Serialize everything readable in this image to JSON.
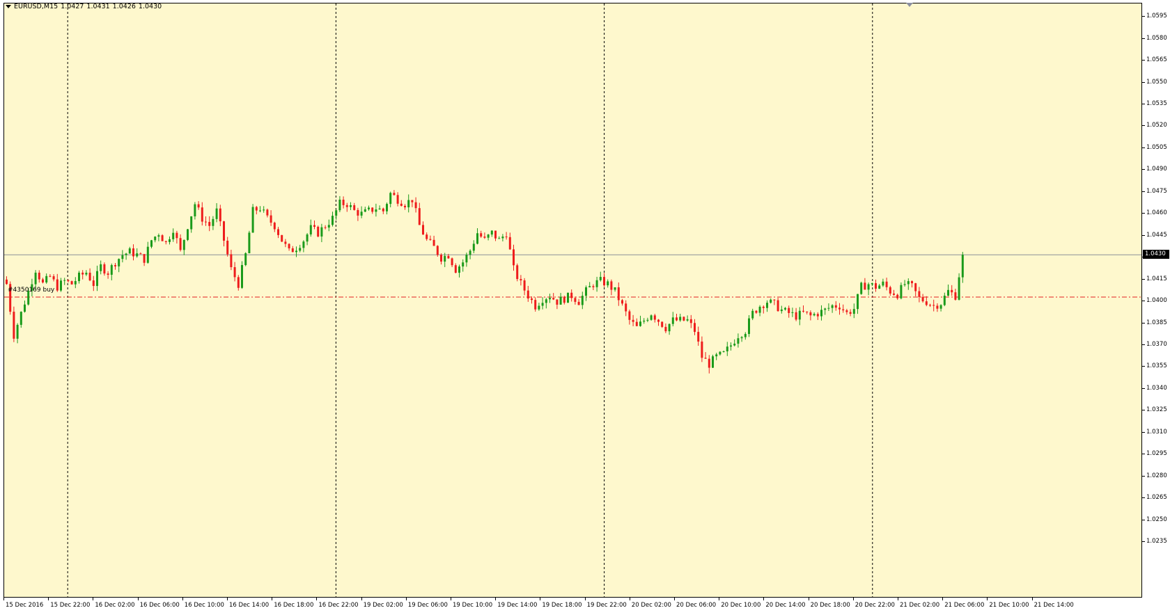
{
  "chart_window": {
    "symbol": "EURUSD,M15",
    "open": "1.0427",
    "high": "1.0431",
    "low": "1.0426",
    "close": "1.0430",
    "order_label": "#4350169 buy",
    "current_price": "1.0430"
  },
  "colors": {
    "background": "#fef8cd",
    "bull_candle": "#1a9a1a",
    "bear_candle": "#ee1c1c",
    "grid_separator": "#000000",
    "order_line": "#e31e1e",
    "bid_line": "#8a9098"
  },
  "chart_data": {
    "type": "candlestick",
    "timeframe": "M15",
    "ylim": [
      1.0225,
      1.06
    ],
    "price_ticks": [
      "1.0595",
      "1.0580",
      "1.0565",
      "1.0550",
      "1.0535",
      "1.0520",
      "1.0505",
      "1.0490",
      "1.0475",
      "1.0460",
      "1.0445",
      "1.0430",
      "1.0415",
      "1.0400",
      "1.0385",
      "1.0370",
      "1.0355",
      "1.0340",
      "1.0325",
      "1.0310",
      "1.0295",
      "1.0280",
      "1.0265",
      "1.0250",
      "1.0235"
    ],
    "time_labels": [
      "15 Dec 2016",
      "15 Dec 22:00",
      "16 Dec 02:00",
      "16 Dec 06:00",
      "16 Dec 10:00",
      "16 Dec 14:00",
      "16 Dec 18:00",
      "16 Dec 22:00",
      "19 Dec 02:00",
      "19 Dec 06:00",
      "19 Dec 10:00",
      "19 Dec 14:00",
      "19 Dec 18:00",
      "19 Dec 22:00",
      "20 Dec 02:00",
      "20 Dec 06:00",
      "20 Dec 10:00",
      "20 Dec 14:00",
      "20 Dec 18:00",
      "20 Dec 22:00",
      "21 Dec 02:00",
      "21 Dec 06:00",
      "21 Dec 10:00",
      "21 Dec 14:00"
    ],
    "order_price": 1.0401,
    "bid_price": 1.043,
    "close_path": [
      [
        0,
        1.041
      ],
      [
        2,
        1.0375
      ],
      [
        4,
        1.039
      ],
      [
        6,
        1.0405
      ],
      [
        8,
        1.042
      ],
      [
        10,
        1.041
      ],
      [
        12,
        1.0415
      ],
      [
        14,
        1.0408
      ],
      [
        16,
        1.0412
      ],
      [
        18,
        1.041
      ],
      [
        20,
        1.0415
      ],
      [
        22,
        1.0418
      ],
      [
        24,
        1.041
      ],
      [
        26,
        1.0422
      ],
      [
        28,
        1.0418
      ],
      [
        30,
        1.0425
      ],
      [
        32,
        1.043
      ],
      [
        34,
        1.0432
      ],
      [
        36,
        1.043
      ],
      [
        38,
        1.0427
      ],
      [
        40,
        1.044
      ],
      [
        42,
        1.0445
      ],
      [
        44,
        1.0438
      ],
      [
        46,
        1.0448
      ],
      [
        48,
        1.0432
      ],
      [
        50,
        1.045
      ],
      [
        52,
        1.0465
      ],
      [
        54,
        1.0455
      ],
      [
        56,
        1.045
      ],
      [
        58,
        1.046
      ],
      [
        60,
        1.044
      ],
      [
        62,
        1.042
      ],
      [
        64,
        1.041
      ],
      [
        66,
        1.043
      ],
      [
        68,
        1.046
      ],
      [
        70,
        1.0462
      ],
      [
        72,
        1.0455
      ],
      [
        74,
        1.045
      ],
      [
        76,
        1.044
      ],
      [
        78,
        1.0432
      ],
      [
        80,
        1.0435
      ],
      [
        82,
        1.044
      ],
      [
        84,
        1.0448
      ],
      [
        86,
        1.0445
      ],
      [
        88,
        1.045
      ],
      [
        90,
        1.0455
      ],
      [
        92,
        1.0465
      ],
      [
        94,
        1.0465
      ],
      [
        96,
        1.046
      ],
      [
        98,
        1.0458
      ],
      [
        100,
        1.046
      ],
      [
        102,
        1.0462
      ],
      [
        104,
        1.046
      ],
      [
        106,
        1.0472
      ],
      [
        108,
        1.0468
      ],
      [
        110,
        1.0465
      ],
      [
        112,
        1.0468
      ],
      [
        114,
        1.045
      ],
      [
        116,
        1.044
      ],
      [
        118,
        1.0435
      ],
      [
        120,
        1.0428
      ],
      [
        122,
        1.043
      ],
      [
        124,
        1.042
      ],
      [
        126,
        1.0425
      ],
      [
        128,
        1.0433
      ],
      [
        130,
        1.0445
      ],
      [
        132,
        1.044
      ],
      [
        134,
        1.0445
      ],
      [
        136,
        1.044
      ],
      [
        138,
        1.0445
      ],
      [
        140,
        1.042
      ],
      [
        142,
        1.041
      ],
      [
        144,
        1.0402
      ],
      [
        146,
        1.0395
      ],
      [
        148,
        1.04
      ],
      [
        150,
        1.0402
      ],
      [
        152,
        1.0398
      ],
      [
        154,
        1.04
      ],
      [
        156,
        1.0402
      ],
      [
        158,
        1.0398
      ],
      [
        160,
        1.0405
      ],
      [
        162,
        1.041
      ],
      [
        164,
        1.0412
      ],
      [
        166,
        1.041
      ],
      [
        168,
        1.0405
      ],
      [
        170,
        1.0395
      ],
      [
        172,
        1.0385
      ],
      [
        174,
        1.038
      ],
      [
        176,
        1.0385
      ],
      [
        178,
        1.039
      ],
      [
        180,
        1.0385
      ],
      [
        182,
        1.038
      ],
      [
        184,
        1.0385
      ],
      [
        186,
        1.0385
      ],
      [
        188,
        1.0385
      ],
      [
        190,
        1.0378
      ],
      [
        192,
        1.036
      ],
      [
        194,
        1.0355
      ],
      [
        196,
        1.036
      ],
      [
        198,
        1.0362
      ],
      [
        200,
        1.0368
      ],
      [
        202,
        1.0375
      ],
      [
        204,
        1.0378
      ],
      [
        206,
        1.039
      ],
      [
        208,
        1.0395
      ],
      [
        210,
        1.0398
      ],
      [
        212,
        1.0396
      ],
      [
        214,
        1.0392
      ],
      [
        216,
        1.039
      ],
      [
        218,
        1.0388
      ],
      [
        220,
        1.039
      ],
      [
        222,
        1.0388
      ],
      [
        224,
        1.039
      ],
      [
        226,
        1.0392
      ],
      [
        228,
        1.0395
      ],
      [
        230,
        1.0395
      ],
      [
        232,
        1.039
      ],
      [
        234,
        1.0393
      ],
      [
        236,
        1.0408
      ],
      [
        238,
        1.041
      ],
      [
        240,
        1.0408
      ],
      [
        242,
        1.041
      ],
      [
        244,
        1.0405
      ],
      [
        246,
        1.0403
      ],
      [
        248,
        1.041
      ],
      [
        250,
        1.0408
      ],
      [
        252,
        1.04
      ],
      [
        254,
        1.0398
      ],
      [
        256,
        1.0395
      ],
      [
        258,
        1.0397
      ],
      [
        260,
        1.0405
      ],
      [
        262,
        1.0402
      ],
      [
        264,
        1.043
      ]
    ]
  }
}
